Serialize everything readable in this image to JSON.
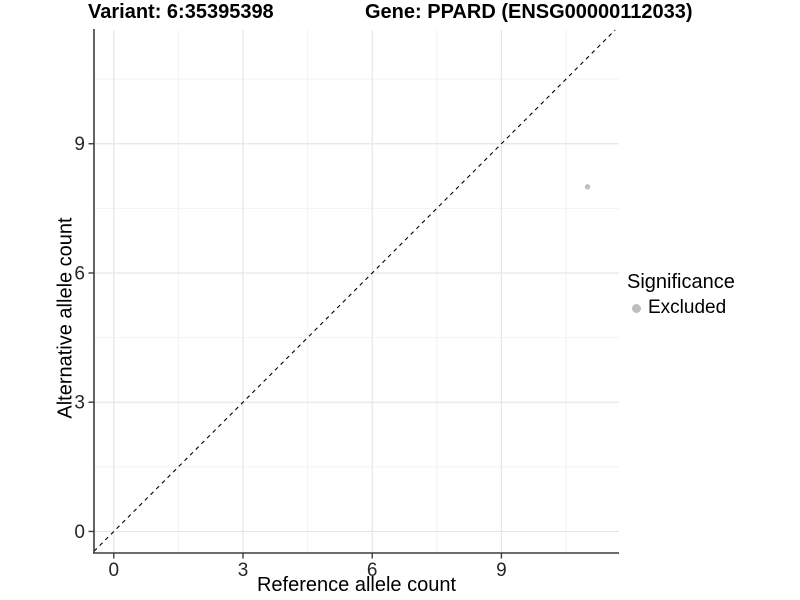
{
  "header": {
    "variant_title": "Variant: 6:35395398",
    "gene_title": "Gene: PPARD (ENSG00000112033)"
  },
  "chart_data": {
    "type": "scatter",
    "title_left": "Variant: 6:35395398",
    "title_right": "Gene: PPARD (ENSG00000112033)",
    "xlabel": "Reference allele count",
    "ylabel": "Alternative allele count",
    "xticks": [
      0,
      3,
      6,
      9
    ],
    "yticks": [
      0,
      3,
      6,
      9
    ],
    "minor_ticks": [
      1.5,
      4.5,
      7.5,
      10.5
    ],
    "xlim": [
      -0.46,
      11.73
    ],
    "ylim": [
      -0.5,
      11.64
    ],
    "grid": "major+minor",
    "legend": {
      "title": "Significance",
      "position": "right",
      "items": [
        {
          "label": "Excluded",
          "color": "#bebebe",
          "marker": "circle"
        }
      ]
    },
    "series": [
      {
        "name": "Excluded",
        "color": "#bebebe",
        "points": [
          {
            "x": 11,
            "y": 8
          }
        ]
      }
    ],
    "reference_line": {
      "kind": "identity",
      "slope": 1,
      "intercept": 0,
      "linestyle": "dashed",
      "color": "#000000"
    },
    "colors": {
      "background": "#ffffff",
      "grid_major": "#e6e6e6",
      "grid_minor": "#f2f2f2",
      "axis": "#3c3c3c",
      "tick_label": "#262626"
    }
  }
}
